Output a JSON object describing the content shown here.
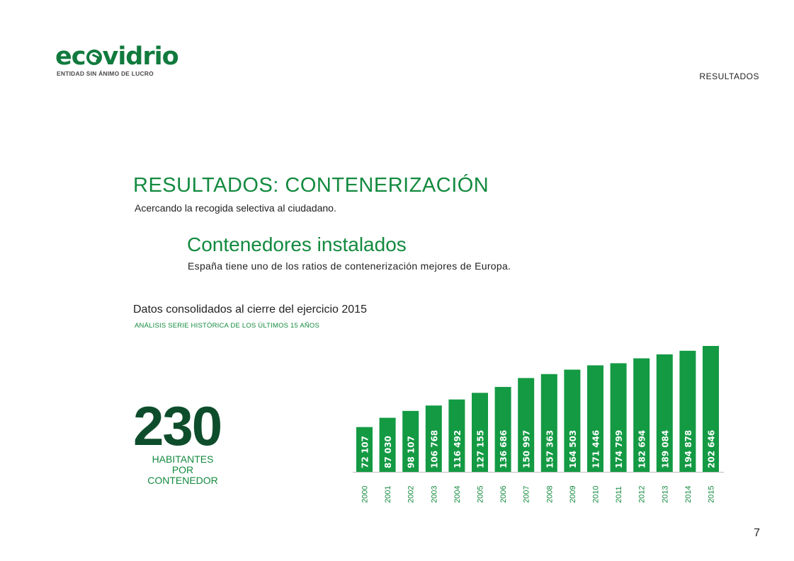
{
  "logo": {
    "word_left": "ec",
    "word_right": "vidrio",
    "tagline": "ENTIDAD SIN ÁNIMO DE LUCRO"
  },
  "header": {
    "section": "RESULTADOS"
  },
  "title": "RESULTADOS: CONTENERIZACIÓN",
  "subtitle": "Acercando la recogida selectiva al ciudadano.",
  "section_title": "Contenedores instalados",
  "section_subtitle": "España tiene uno de los ratios de contenerización mejores de Europa.",
  "data_title": "Datos consolidados al cierre del ejercicio 2015",
  "data_subtitle": "ANÁLISIS SERIE HISTÓRICA DE LOS ÚLTIMOS 15 AÑOS",
  "kpi": {
    "value": "230",
    "caption": [
      "HABITANTES",
      "POR",
      "CONTENEDOR"
    ]
  },
  "page_number": "7",
  "colors": {
    "bar": "#139a43",
    "accent": "#138a3f",
    "dark_green": "#0e4d2c"
  },
  "chart_data": {
    "type": "bar",
    "categories": [
      "2000",
      "2001",
      "2002",
      "2003",
      "2004",
      "2005",
      "2006",
      "2007",
      "2008",
      "2009",
      "2010",
      "2011",
      "2012",
      "2013",
      "2014",
      "2015"
    ],
    "values": [
      72107,
      87030,
      98107,
      106768,
      116492,
      127155,
      136686,
      150997,
      157363,
      164503,
      171446,
      174799,
      182694,
      189084,
      194878,
      202646
    ],
    "value_labels": [
      "72 107",
      "87 030",
      "98 107",
      "106 768",
      "116 492",
      "127 155",
      "136 686",
      "150 997",
      "157 363",
      "164 503",
      "171 446",
      "174 799",
      "182 694",
      "189 084",
      "194 878",
      "202 646"
    ],
    "ylim": [
      0,
      202646
    ],
    "grid": false,
    "legend": "none"
  }
}
